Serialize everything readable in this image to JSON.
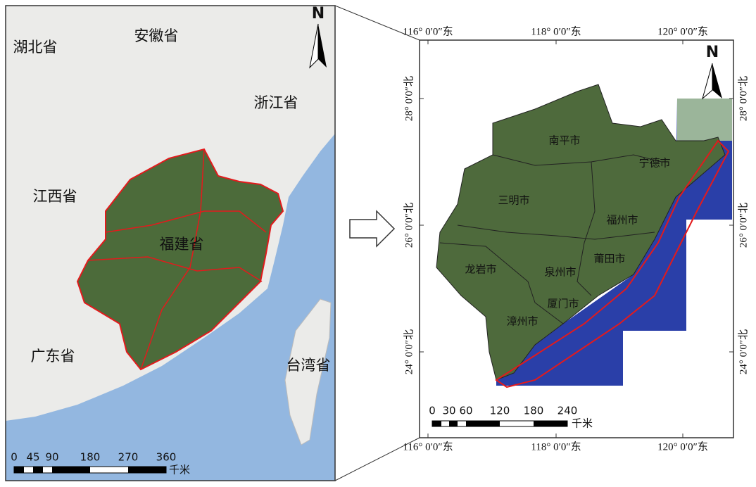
{
  "left_map": {
    "provinces": [
      "湖北省",
      "安徽省",
      "浙江省",
      "江西省",
      "福建省",
      "广东省",
      "台湾省"
    ],
    "north": "N",
    "scale": {
      "ticks": [
        "0",
        "45",
        "90",
        "180",
        "270",
        "360"
      ],
      "unit": "千米"
    }
  },
  "right_map": {
    "lon_labels": [
      "116° 0′0″东",
      "118° 0′0″东",
      "120° 0′0″东"
    ],
    "lat_labels": [
      "28° 0′0″北",
      "26° 0′0″北",
      "24° 0′0″北"
    ],
    "cities": [
      "南平市",
      "宁德市",
      "三明市",
      "福州市",
      "莆田市",
      "龙岩市",
      "泉州市",
      "厦门市",
      "漳州市"
    ],
    "north": "N",
    "scale": {
      "ticks": [
        "0",
        "30",
        "60",
        "120",
        "180",
        "240"
      ],
      "unit": "千米"
    }
  }
}
